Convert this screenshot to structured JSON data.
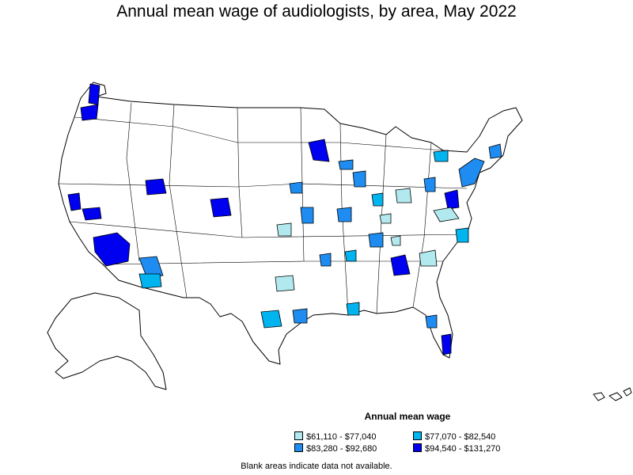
{
  "title": "Annual mean wage of audiologists, by area, May 2022",
  "legend": {
    "title": "Annual mean wage",
    "items": [
      {
        "label": "$61,110 - $77,040",
        "color": "#b2e9ee"
      },
      {
        "label": "$77,070 - $82,540",
        "color": "#00b4f0"
      },
      {
        "label": "$83,280 - $92,680",
        "color": "#1e8cf0"
      },
      {
        "label": "$94,540 - $131,270",
        "color": "#0000f0"
      }
    ]
  },
  "footnote": "Blank areas indicate data not available."
}
